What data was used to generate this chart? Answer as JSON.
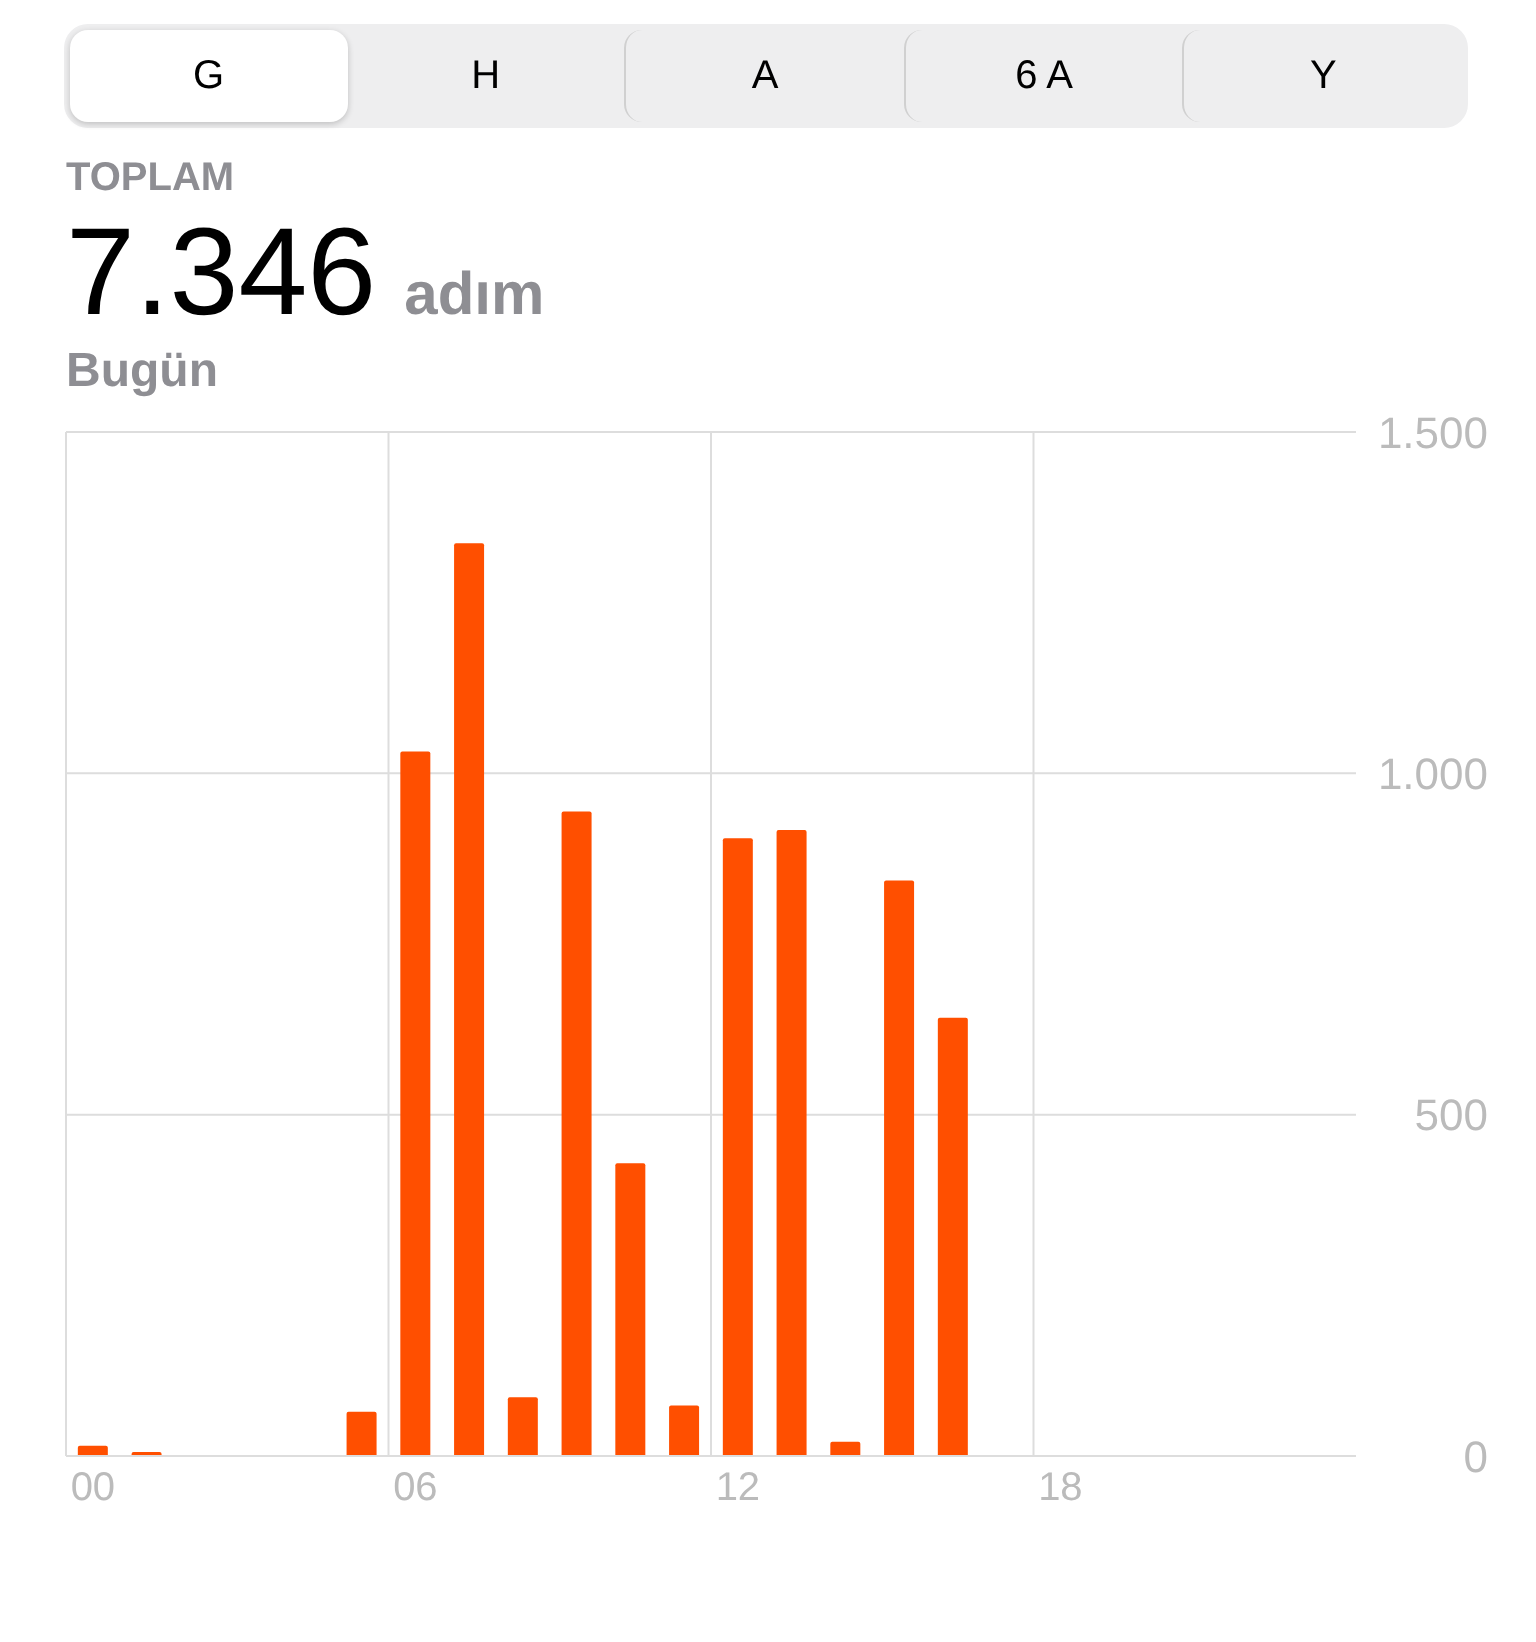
{
  "chart_data": {
    "type": "bar",
    "title": "7.346",
    "subtitle": "Bugün",
    "annotations": [
      "G",
      "H",
      "A",
      "6 A",
      "Y",
      "TOPLAM",
      "adım"
    ],
    "categories": [
      "00",
      null,
      null,
      null,
      null,
      null,
      "06",
      null,
      null,
      null,
      null,
      null,
      "12",
      null,
      null,
      null,
      null,
      null,
      "18",
      null,
      null,
      null,
      null,
      null
    ],
    "values": [
      15,
      6,
      0,
      0,
      0,
      65,
      1032,
      1337,
      86,
      944,
      429,
      74,
      905,
      917,
      21,
      843,
      642,
      0,
      0,
      0,
      0,
      0,
      0,
      0
    ],
    "color": "#ff4f00",
    "ylim": [
      0,
      1500
    ],
    "yticks": [
      0,
      500,
      {
        "value": 1000,
        "label": "1.000"
      },
      {
        "value": 1500,
        "label": "1.500"
      }
    ],
    "grid": true
  }
}
